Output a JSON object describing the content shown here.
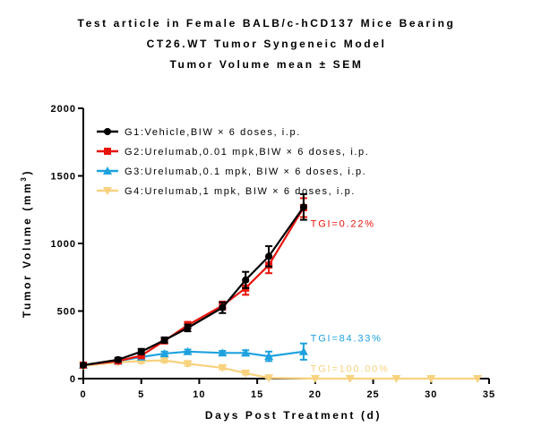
{
  "titles": [
    "Test article in Female BALB/c-hCD137 Mice Bearing",
    "CT26.WT Tumor Syngeneic Model",
    "Tumor Volume mean ± SEM"
  ],
  "chart_data": {
    "type": "line",
    "title": "Test article in Female BALB/c-hCD137 Mice Bearing CT26.WT Tumor Syngeneic Model Tumor Volume mean ± SEM",
    "xlabel": "Days Post Treatment (d)",
    "ylabel": "Tumor Volume (mm3)",
    "ylabel_main": "Tumor Volume (mm",
    "ylabel_sup": "3",
    "ylabel_close": ")",
    "xlim": [
      0,
      35
    ],
    "ylim": [
      0,
      2000
    ],
    "xticks": [
      0,
      5,
      10,
      15,
      20,
      25,
      30,
      35
    ],
    "yticks": [
      0,
      500,
      1000,
      1500,
      2000
    ],
    "grid": false,
    "legend_position": "top-left",
    "series": [
      {
        "name": "G1:Vehicle,BIW × 6 doses, i.p.",
        "color": "#000000",
        "marker": "circle",
        "x": [
          0,
          3,
          5,
          7,
          9,
          12,
          14,
          16,
          19
        ],
        "y": [
          100,
          140,
          200,
          285,
          375,
          525,
          730,
          905,
          1270
        ],
        "err": [
          10,
          15,
          20,
          20,
          25,
          40,
          60,
          75,
          95
        ]
      },
      {
        "name": "G2:Urelumab,0.01 mpk,BIW × 6 doses, i.p.",
        "color": "#e8140c",
        "marker": "square",
        "x": [
          0,
          3,
          5,
          7,
          9,
          12,
          14,
          16,
          19
        ],
        "y": [
          100,
          130,
          170,
          280,
          395,
          540,
          670,
          840,
          1265
        ],
        "err": [
          10,
          15,
          15,
          20,
          25,
          30,
          50,
          60,
          70
        ]
      },
      {
        "name": "G3:Urelumab,0.1 mpk, BIW × 6 doses, i.p.",
        "color": "#1ea1df",
        "marker": "triangle-up",
        "x": [
          0,
          3,
          5,
          7,
          9,
          12,
          14,
          16,
          19
        ],
        "y": [
          100,
          130,
          160,
          185,
          200,
          190,
          190,
          165,
          200
        ],
        "err": [
          10,
          12,
          15,
          15,
          15,
          15,
          20,
          35,
          60
        ]
      },
      {
        "name": "G4:Urelumab,1 mpk, BIW × 6 doses, i.p.",
        "color": "#f8d27e",
        "marker": "triangle-down",
        "x": [
          0,
          3,
          5,
          7,
          9,
          12,
          14,
          16,
          20,
          23,
          27,
          30,
          34
        ],
        "y": [
          95,
          120,
          130,
          135,
          110,
          80,
          40,
          5,
          0,
          0,
          0,
          0,
          0
        ],
        "err": [
          10,
          10,
          15,
          15,
          15,
          12,
          10,
          3,
          0,
          0,
          0,
          0,
          0
        ]
      }
    ],
    "annotations": [
      {
        "text": "TGI=0.22%",
        "color": "#e8140c",
        "x": 19.6,
        "y": 1150
      },
      {
        "text": "TGI=84.33%",
        "color": "#1ea1df",
        "x": 19.6,
        "y": 300
      },
      {
        "text": "TGI=100.00%",
        "color": "#f8d27e",
        "x": 19.6,
        "y": 75
      }
    ]
  }
}
